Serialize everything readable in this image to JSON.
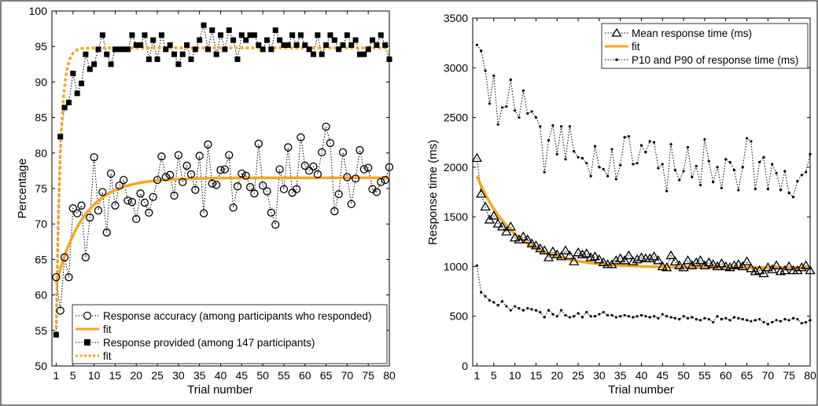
{
  "chart_data": [
    {
      "type": "line",
      "xlabel": "Trial number",
      "ylabel": "Percentage",
      "xlim": [
        0,
        80
      ],
      "ylim": [
        50,
        100
      ],
      "x_ticks": [
        1,
        5,
        10,
        15,
        20,
        25,
        30,
        35,
        40,
        45,
        50,
        55,
        60,
        65,
        70,
        75,
        80
      ],
      "y_ticks": [
        50,
        55,
        60,
        65,
        70,
        75,
        80,
        85,
        90,
        95,
        100
      ],
      "legend_position": "bottom-right",
      "series": [
        {
          "name": "Response accuracy (among participants who responded)",
          "marker": "open-circle",
          "line": "dotted",
          "color": "#000000",
          "values": [
            62.5,
            57.8,
            65.3,
            62.5,
            72.2,
            71.5,
            72.6,
            65.3,
            70.9,
            79.4,
            71.9,
            74.5,
            68.8,
            77.1,
            72.6,
            75.4,
            76.2,
            73.3,
            73.1,
            70.7,
            74.3,
            73.0,
            71.6,
            73.8,
            76.2,
            79.5,
            76.6,
            76.9,
            74.0,
            79.7,
            75.9,
            78.2,
            77.0,
            74.8,
            79.6,
            71.5,
            81.2,
            75.7,
            75.5,
            77.6,
            77.7,
            79.7,
            72.3,
            75.3,
            77.1,
            76.8,
            75.2,
            74.3,
            81.3,
            75.4,
            74.6,
            71.6,
            69.9,
            77.7,
            74.9,
            80.8,
            74.4,
            74.9,
            82.2,
            78.2,
            77.5,
            78.1,
            77.0,
            80.1,
            83.7,
            81.4,
            71.8,
            74.2,
            80.1,
            76.6,
            72.8,
            76.4,
            80.4,
            77.7,
            77.9,
            74.9,
            74.5,
            75.9,
            76.2,
            78.0
          ]
        },
        {
          "name": "fit",
          "line": "solid",
          "color": "#f5a623",
          "fit": {
            "model": "exponential-approach",
            "start": 61.5,
            "asymptote": 76.5,
            "tau": 6.5
          }
        },
        {
          "name": "Response provided (among 147 participants)",
          "marker": "filled-square",
          "line": "dotted",
          "color": "#000000",
          "values": [
            54.4,
            82.3,
            86.4,
            87.1,
            91.2,
            88.4,
            89.8,
            93.9,
            91.8,
            92.5,
            94.6,
            96.6,
            93.9,
            92.5,
            94.6,
            94.6,
            94.6,
            94.6,
            96.6,
            95.2,
            95.2,
            96.6,
            93.2,
            95.9,
            93.2,
            96.6,
            94.6,
            95.2,
            93.9,
            92.5,
            93.9,
            95.2,
            93.2,
            94.6,
            95.9,
            98.0,
            94.6,
            97.3,
            93.9,
            96.6,
            94.6,
            97.3,
            95.9,
            93.2,
            96.6,
            95.9,
            96.6,
            96.6,
            95.2,
            94.6,
            95.9,
            94.6,
            97.3,
            95.9,
            95.2,
            95.2,
            96.6,
            95.2,
            96.6,
            95.2,
            94.6,
            93.9,
            96.6,
            93.9,
            95.2,
            96.6,
            95.9,
            94.6,
            95.2,
            96.6,
            95.2,
            95.9,
            93.9,
            93.9,
            94.6,
            95.9,
            95.2,
            96.6,
            95.2,
            93.2
          ]
        },
        {
          "name": "fit",
          "line": "dotted",
          "color": "#f5a623",
          "fit": {
            "model": "exponential-approach",
            "start": 54.5,
            "asymptote": 94.8,
            "tau": 1.0
          }
        }
      ]
    },
    {
      "type": "line",
      "xlabel": "Trial number",
      "ylabel": "Response time (ms)",
      "xlim": [
        0,
        80
      ],
      "ylim": [
        0,
        3500
      ],
      "x_ticks": [
        1,
        5,
        10,
        15,
        20,
        25,
        30,
        35,
        40,
        45,
        50,
        55,
        60,
        65,
        70,
        75,
        80
      ],
      "y_ticks": [
        0,
        500,
        1000,
        1500,
        2000,
        2500,
        3000,
        3500
      ],
      "legend_position": "top-right",
      "series": [
        {
          "name": "Mean response time (ms)",
          "marker": "open-triangle",
          "line": "dotted",
          "color": "#000000",
          "values": [
            2090,
            1730,
            1600,
            1470,
            1510,
            1430,
            1400,
            1350,
            1400,
            1290,
            1270,
            1300,
            1270,
            1230,
            1210,
            1180,
            1160,
            1090,
            1150,
            1120,
            1100,
            1160,
            1110,
            1050,
            1140,
            1120,
            1130,
            1090,
            1100,
            1070,
            1040,
            1020,
            1020,
            1060,
            1080,
            1060,
            1110,
            1050,
            1070,
            1090,
            1080,
            1080,
            1100,
            1060,
            1000,
            990,
            1110,
            1050,
            1010,
            990,
            1060,
            1010,
            1040,
            1060,
            1010,
            1040,
            1020,
            1000,
            1030,
            1000,
            990,
            1010,
            1020,
            1000,
            1050,
            980,
            950,
            960,
            930,
            990,
            970,
            1010,
            950,
            960,
            1000,
            960,
            960,
            990,
            1010,
            960
          ]
        },
        {
          "name": "fit",
          "line": "solid",
          "color": "#f5a623",
          "fit": {
            "model": "exponential-approach",
            "start": 1910,
            "asymptote": 990,
            "tau": 9.0
          }
        },
        {
          "name": "P10 and P90 of response time (ms)",
          "marker": "dot",
          "line": "dotted",
          "color": "#000000",
          "values": [
            3230,
            3170,
            2970,
            2640,
            2920,
            2430,
            2600,
            2610,
            2880,
            2570,
            2500,
            2770,
            2540,
            2560,
            2500,
            2410,
            1950,
            2270,
            2420,
            2130,
            2410,
            2080,
            2410,
            2160,
            2100,
            2090,
            2040,
            1910,
            2210,
            2000,
            1980,
            1910,
            2180,
            1880,
            2020,
            2300,
            2310,
            2030,
            2040,
            2220,
            2150,
            2260,
            2250,
            1990,
            2030,
            1760,
            2230,
            1970,
            1870,
            1960,
            2200,
            1900,
            2010,
            1820,
            2280,
            2060,
            1850,
            2000,
            1790,
            2080,
            2050,
            1970,
            1770,
            2000,
            2290,
            2260,
            1780,
            2050,
            2100,
            1780,
            2030,
            1940,
            1770,
            1960,
            1740,
            1700,
            1860,
            1920,
            1950,
            2130
          ],
          "values_lower": [
            1010,
            740,
            700,
            660,
            640,
            610,
            650,
            600,
            560,
            600,
            580,
            560,
            580,
            570,
            560,
            540,
            490,
            560,
            520,
            500,
            560,
            510,
            490,
            500,
            530,
            490,
            540,
            500,
            500,
            520,
            540,
            510,
            510,
            490,
            500,
            510,
            500,
            490,
            500,
            510,
            500,
            490,
            500,
            480,
            520,
            500,
            490,
            480,
            470,
            500,
            480,
            490,
            470,
            460,
            480,
            470,
            440,
            500,
            470,
            480,
            460,
            490,
            480,
            470,
            460,
            450,
            460,
            470,
            440,
            420,
            440,
            460,
            450,
            470,
            460,
            480,
            470,
            430,
            440,
            460
          ]
        }
      ]
    }
  ]
}
